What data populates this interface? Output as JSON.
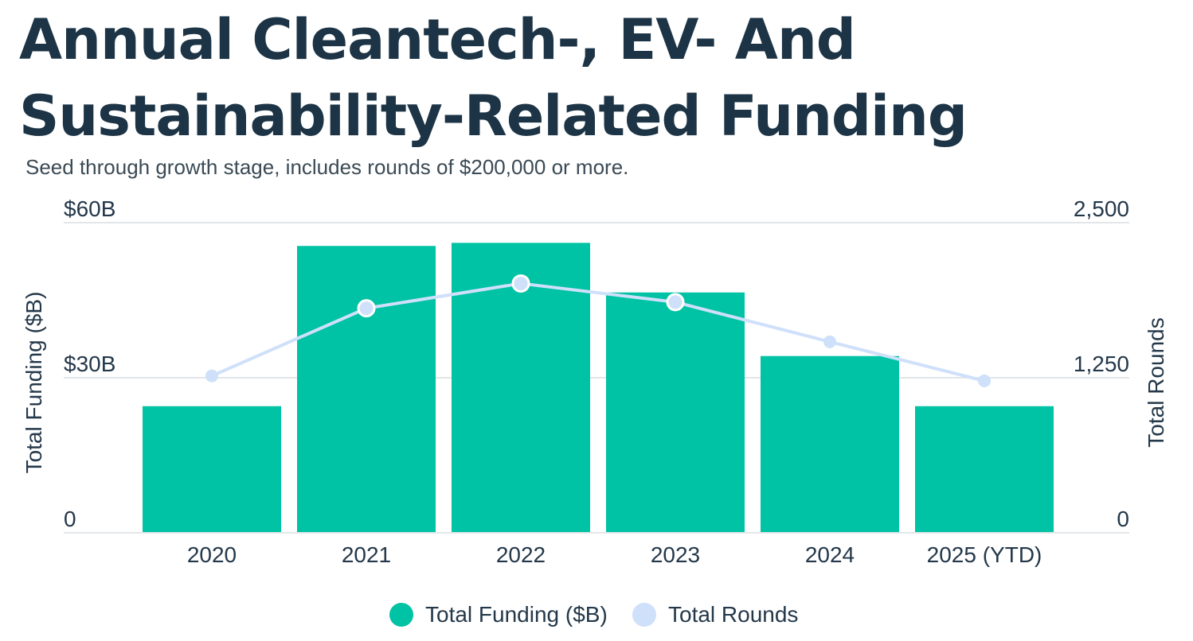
{
  "chart_data": {
    "type": "bar",
    "title": "Annual Cleantech-, EV- And Sustainability-Related Funding",
    "subtitle": "Seed through growth stage, includes rounds of $200,000 or more.",
    "categories": [
      "2020",
      "2021",
      "2022",
      "2023",
      "2024",
      "2025 (YTD)"
    ],
    "series": [
      {
        "name": "Total Funding ($B)",
        "type": "bar",
        "axis": "left",
        "values": [
          24.5,
          55.5,
          56.1,
          46.5,
          34.2,
          24.5
        ]
      },
      {
        "name": "Total Rounds",
        "type": "line",
        "axis": "right",
        "values": [
          1265,
          1810,
          2010,
          1860,
          1540,
          1225
        ]
      }
    ],
    "ylabel": "Total Funding ($B)",
    "ylabel_right": "Total Rounds",
    "ylim": [
      0,
      60
    ],
    "ylim_right": [
      0,
      2500
    ],
    "yticks": [
      {
        "value": 0,
        "label": "0"
      },
      {
        "value": 30,
        "label": "$30B"
      },
      {
        "value": 60,
        "label": "$60B"
      }
    ],
    "yticks_right": [
      {
        "value": 0,
        "label": "0"
      },
      {
        "value": 1250,
        "label": "1,250"
      },
      {
        "value": 2500,
        "label": "2,500"
      }
    ],
    "highlighted_points": [
      1,
      2,
      3
    ],
    "colors": {
      "bar": "#00c2a4",
      "line": "#cfe0fa",
      "point_outline": "#ffffff",
      "grid": "#e3e6e9",
      "text": "#24384a",
      "title": "#1c3446"
    },
    "grid": true,
    "legend": "bottom-center"
  }
}
